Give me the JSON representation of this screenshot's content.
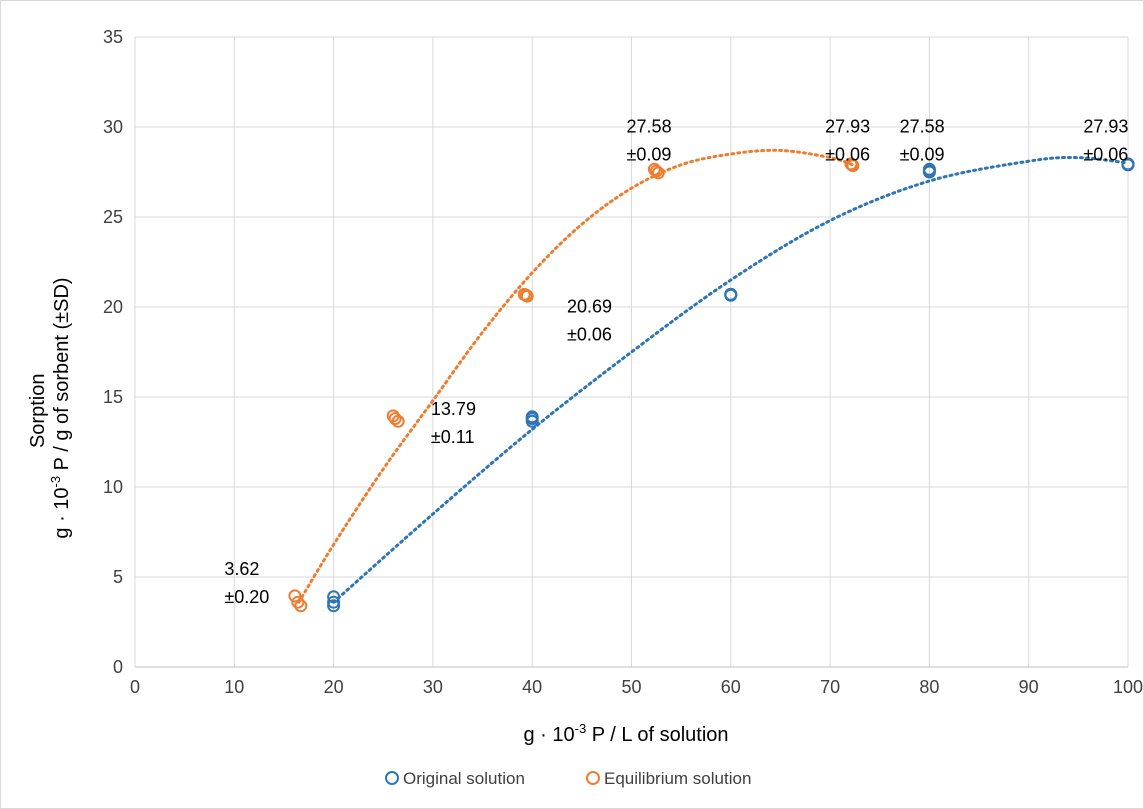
{
  "chart_data": {
    "type": "scatter",
    "title": "",
    "xlabel": "g · 10⁻³ P / L of solution",
    "ylabel_line1": "Sorption",
    "ylabel_line2": "g · 10⁻³ P / g of sorbent (±SD)",
    "xlim": [
      0,
      100
    ],
    "ylim": [
      0,
      35
    ],
    "x_ticks": [
      "0",
      "10",
      "20",
      "30",
      "40",
      "50",
      "60",
      "70",
      "80",
      "90",
      "100"
    ],
    "y_ticks": [
      "0",
      "5",
      "10",
      "15",
      "20",
      "25",
      "30",
      "35"
    ],
    "grid": true,
    "legend_position": "bottom",
    "series": [
      {
        "name": "Original solution",
        "color": "#2e75b6",
        "marker": "open-circle",
        "points": [
          [
            20,
            3.9
          ],
          [
            20,
            3.6
          ],
          [
            20,
            3.4
          ],
          [
            40,
            13.9
          ],
          [
            40,
            13.8
          ],
          [
            40,
            13.65
          ],
          [
            60,
            20.7
          ],
          [
            60,
            20.65
          ],
          [
            60,
            20.7
          ],
          [
            80,
            27.65
          ],
          [
            80,
            27.55
          ],
          [
            80,
            27.5
          ],
          [
            100,
            27.95
          ],
          [
            100,
            27.9
          ],
          [
            100,
            27.9
          ]
        ],
        "trendline": {
          "type": "polynomial",
          "color": "#2e75b6",
          "x": [
            20,
            30,
            40,
            50,
            60,
            70,
            80,
            90,
            95,
            100
          ],
          "y": [
            3.6,
            8.5,
            13.2,
            17.5,
            21.5,
            24.8,
            27.0,
            28.1,
            28.3,
            28.0
          ]
        }
      },
      {
        "name": "Equilibrium solution",
        "color": "#ed7d31",
        "marker": "open-circle",
        "points": [
          [
            16.1,
            3.95
          ],
          [
            16.4,
            3.6
          ],
          [
            16.7,
            3.4
          ],
          [
            26.0,
            13.95
          ],
          [
            26.2,
            13.8
          ],
          [
            26.5,
            13.65
          ],
          [
            39.2,
            20.7
          ],
          [
            39.4,
            20.65
          ],
          [
            39.5,
            20.6
          ],
          [
            52.3,
            27.65
          ],
          [
            52.5,
            27.55
          ],
          [
            52.7,
            27.45
          ],
          [
            72.1,
            27.95
          ],
          [
            72.2,
            27.9
          ],
          [
            72.3,
            27.85
          ]
        ],
        "trendline": {
          "type": "polynomial",
          "color": "#ed7d31",
          "x": [
            16.5,
            20,
            25,
            30,
            35,
            40,
            45,
            50,
            55,
            60,
            65,
            70,
            72.3
          ],
          "y": [
            3.6,
            6.8,
            11.0,
            14.8,
            18.6,
            21.9,
            24.6,
            26.6,
            27.9,
            28.5,
            28.7,
            28.3,
            27.9
          ]
        }
      }
    ],
    "annotations": [
      {
        "line1": "3.62",
        "line2": "±0.20",
        "x": 9.0,
        "y": 5.1
      },
      {
        "line1": "13.79",
        "line2": "±0.11",
        "x": 29.8,
        "y": 14.0
      },
      {
        "line1": "20.69",
        "line2": "±0.06",
        "x": 43.5,
        "y": 19.7
      },
      {
        "line1": "27.58",
        "line2": "±0.09",
        "x": 49.5,
        "y": 29.7
      },
      {
        "line1": "27.93",
        "line2": "±0.06",
        "x": 69.5,
        "y": 29.7
      },
      {
        "line1": "27.58",
        "line2": "±0.09",
        "x": 77.0,
        "y": 29.7
      },
      {
        "line1": "27.93",
        "line2": "±0.06",
        "x": 95.5,
        "y": 29.7
      }
    ]
  }
}
